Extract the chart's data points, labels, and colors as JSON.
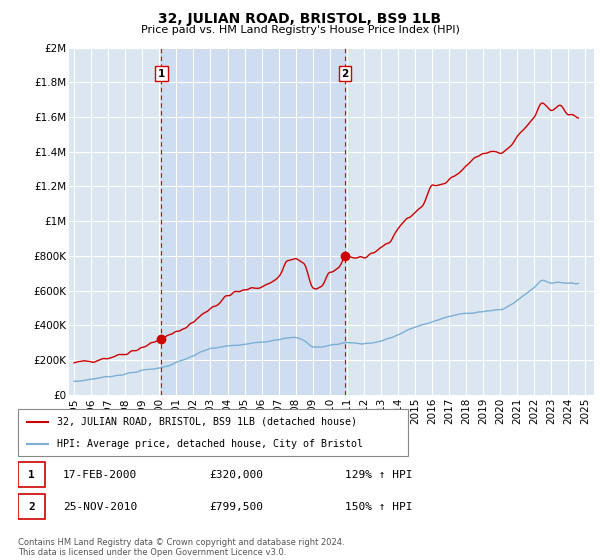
{
  "title": "32, JULIAN ROAD, BRISTOL, BS9 1LB",
  "subtitle": "Price paid vs. HM Land Registry's House Price Index (HPI)",
  "ylim": [
    0,
    2000000
  ],
  "yticks": [
    0,
    200000,
    400000,
    600000,
    800000,
    1000000,
    1200000,
    1400000,
    1600000,
    1800000,
    2000000
  ],
  "ytick_labels": [
    "£0",
    "£200K",
    "£400K",
    "£600K",
    "£800K",
    "£1M",
    "£1.2M",
    "£1.4M",
    "£1.6M",
    "£1.8M",
    "£2M"
  ],
  "xlim_start": 1994.7,
  "xlim_end": 2025.5,
  "sale1_x": 2000.12,
  "sale1_y": 320000,
  "sale2_x": 2010.9,
  "sale2_y": 799500,
  "sale1_label": "1",
  "sale2_label": "2",
  "sale1_date": "17-FEB-2000",
  "sale1_price": "£320,000",
  "sale1_hpi": "129% ↑ HPI",
  "sale2_date": "25-NOV-2010",
  "sale2_price": "£799,500",
  "sale2_hpi": "150% ↑ HPI",
  "legend_line1": "32, JULIAN ROAD, BRISTOL, BS9 1LB (detached house)",
  "legend_line2": "HPI: Average price, detached house, City of Bristol",
  "footer": "Contains HM Land Registry data © Crown copyright and database right 2024.\nThis data is licensed under the Open Government Licence v3.0.",
  "red_color": "#cc0000",
  "blue_color": "#7bafd4",
  "bg_color": "#dce6f1",
  "shade_color": "#c5d8ee",
  "grid_color": "#ffffff",
  "dashed_color": "#cc0000",
  "xtick_years": [
    1995,
    1996,
    1997,
    1998,
    1999,
    2000,
    2001,
    2002,
    2003,
    2004,
    2005,
    2006,
    2007,
    2008,
    2009,
    2010,
    2011,
    2012,
    2013,
    2014,
    2015,
    2016,
    2017,
    2018,
    2019,
    2020,
    2021,
    2022,
    2023,
    2024,
    2025
  ]
}
